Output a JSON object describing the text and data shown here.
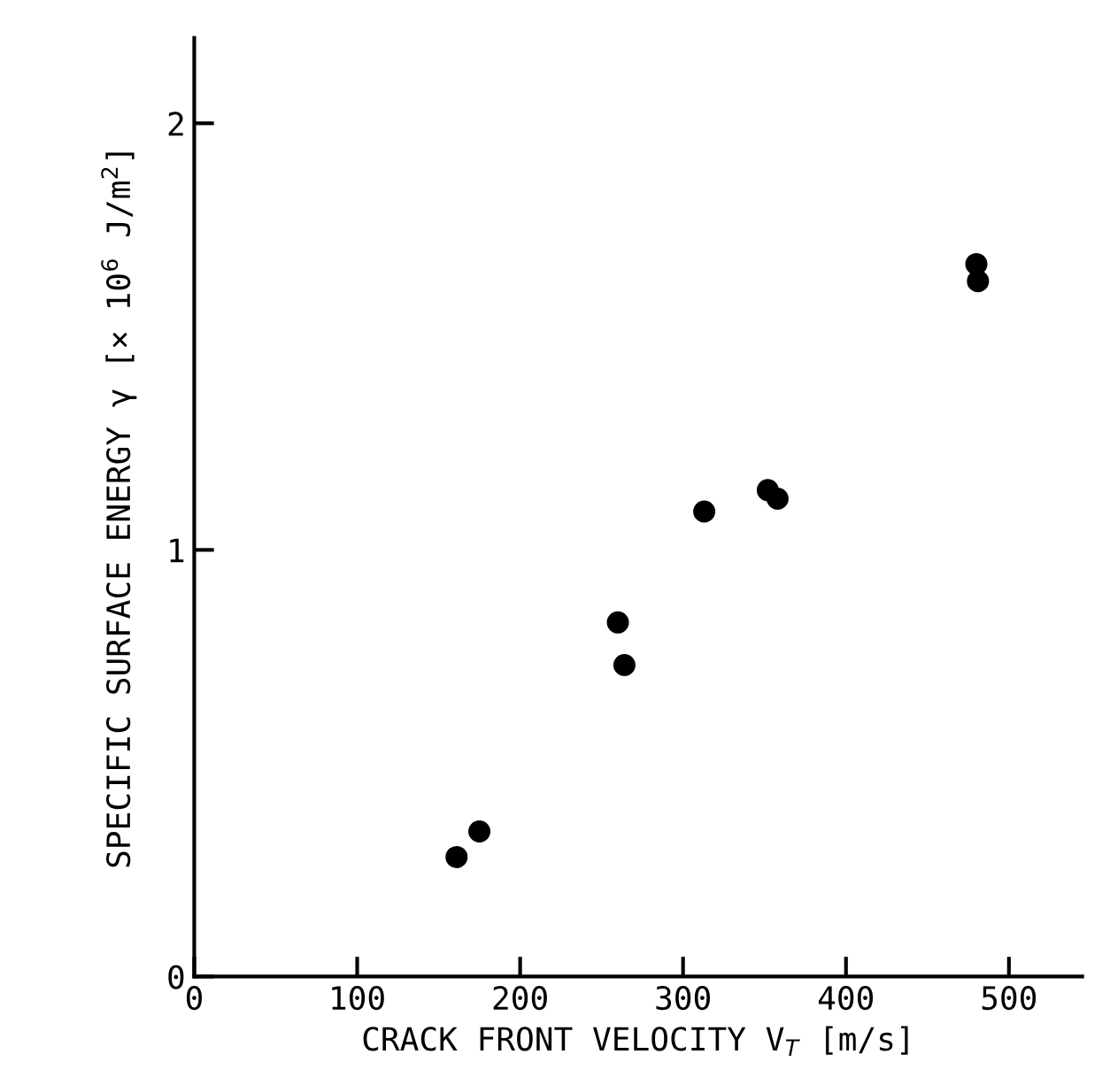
{
  "chart_data": {
    "type": "scatter",
    "xlabel": "CRACK FRONT VELOCITY V$_{T}$ [m/s]",
    "ylabel": "SPECIFIC SURFACE ENERGY γ [× 10$^{6}$ J/m$^{2}$]",
    "x": [
      161,
      175,
      260,
      264,
      313,
      352,
      358,
      480,
      481
    ],
    "values": [
      0.28,
      0.34,
      0.83,
      0.73,
      1.09,
      1.14,
      1.12,
      1.67,
      1.63
    ],
    "color": "#000000",
    "marker": "circle",
    "xlim": [
      0,
      545
    ],
    "ylim": [
      0,
      2.2
    ],
    "xticks": [
      0,
      100,
      200,
      300,
      400,
      500
    ],
    "yticks": [
      0,
      1,
      2
    ],
    "grid": false
  }
}
